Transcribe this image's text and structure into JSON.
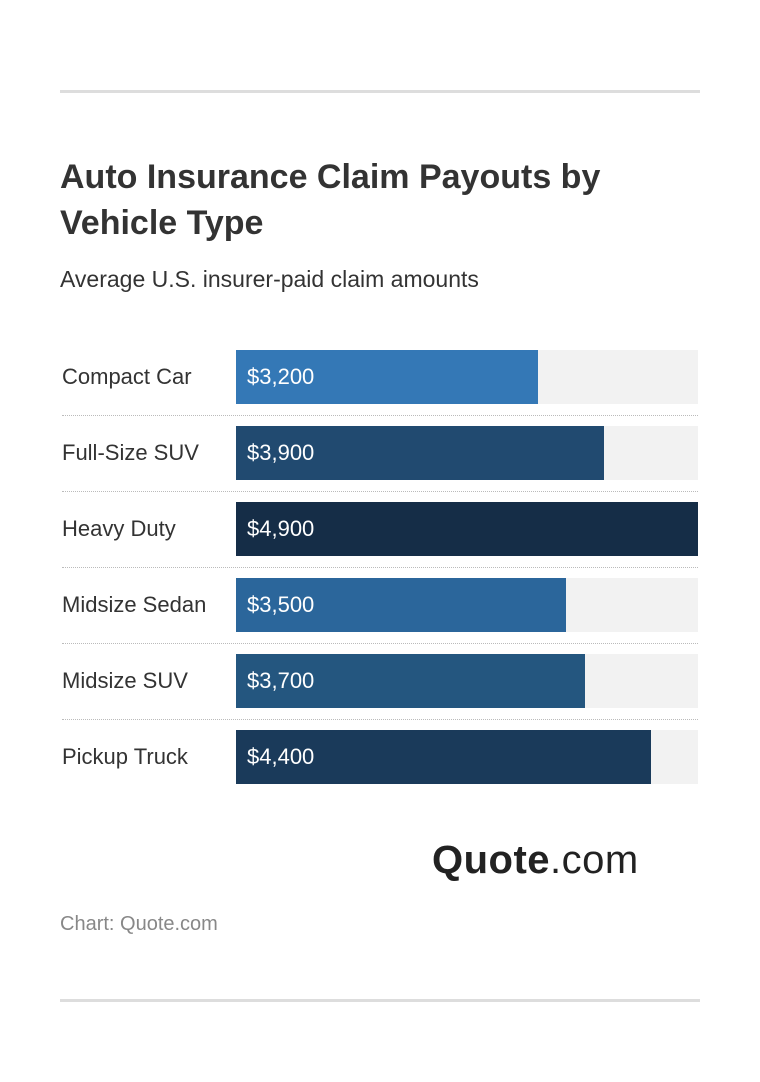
{
  "title": "Auto Insurance Claim Payouts by Vehicle Type",
  "subtitle": "Average U.S. insurer-paid claim amounts",
  "source": "Chart: Quote.com",
  "logo": {
    "bold": "Quote",
    "light": ".com"
  },
  "colors": {
    "track": "#f2f2f2",
    "bars": [
      "#3478b6",
      "#214a70",
      "#152d47",
      "#2b669b",
      "#24567f",
      "#1a3a5a"
    ]
  },
  "chart_data": {
    "type": "bar",
    "orientation": "horizontal",
    "title": "Auto Insurance Claim Payouts by Vehicle Type",
    "subtitle": "Average U.S. insurer-paid claim amounts",
    "categories": [
      "Compact Car",
      "Full-Size SUV",
      "Heavy Duty",
      "Midsize Sedan",
      "Midsize SUV",
      "Pickup Truck"
    ],
    "values": [
      3200,
      3900,
      4900,
      3500,
      3700,
      4400
    ],
    "value_labels": [
      "$3,200",
      "$3,900",
      "$4,900",
      "$3,500",
      "$3,700",
      "$4,400"
    ],
    "xlim": [
      0,
      4900
    ],
    "grid": false,
    "legend": "none"
  }
}
